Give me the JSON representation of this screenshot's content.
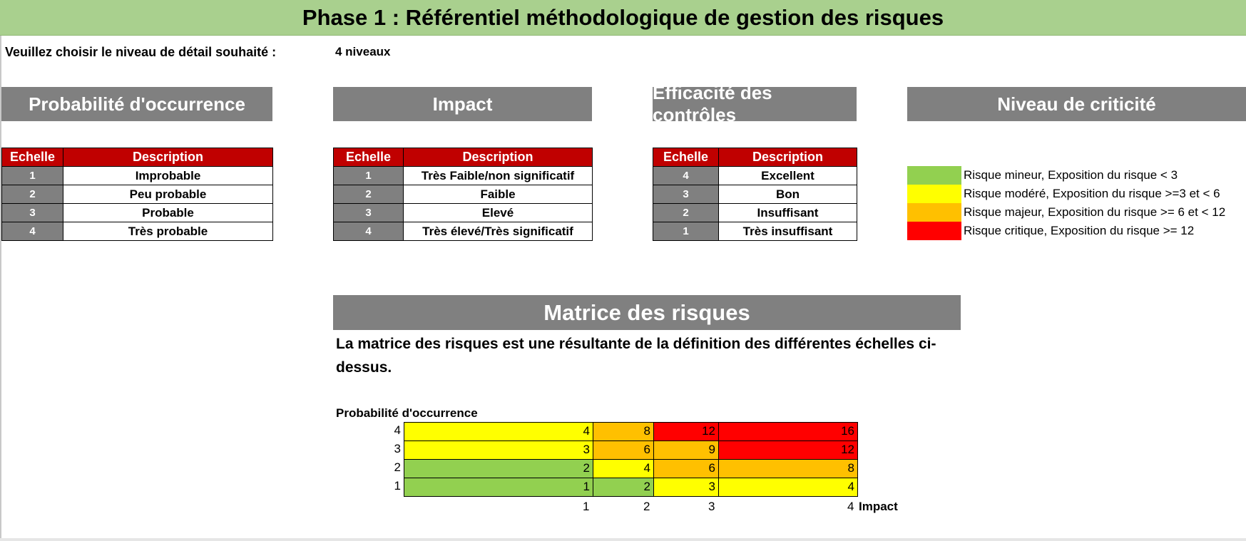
{
  "title": "Phase 1 : Référentiel méthodologique de gestion des risques",
  "prompt": {
    "label": "Veuillez choisir le niveau de détail souhaité :",
    "value": "4 niveaux"
  },
  "sections": {
    "probability": {
      "header": "Probabilité d'occurrence",
      "col_scale": "Echelle",
      "col_desc": "Description",
      "rows": [
        {
          "level": "1",
          "desc": "Improbable"
        },
        {
          "level": "2",
          "desc": "Peu probable"
        },
        {
          "level": "3",
          "desc": "Probable"
        },
        {
          "level": "4",
          "desc": "Très probable"
        }
      ]
    },
    "impact": {
      "header": "Impact",
      "col_scale": "Echelle",
      "col_desc": "Description",
      "rows": [
        {
          "level": "1",
          "desc": "Très Faible/non significatif"
        },
        {
          "level": "2",
          "desc": "Faible"
        },
        {
          "level": "3",
          "desc": "Elevé"
        },
        {
          "level": "4",
          "desc": "Très élevé/Très significatif"
        }
      ]
    },
    "controls": {
      "header": "Efficacité des contrôles",
      "col_scale": "Echelle",
      "col_desc": "Description",
      "rows": [
        {
          "level": "4",
          "desc": "Excellent"
        },
        {
          "level": "3",
          "desc": "Bon"
        },
        {
          "level": "2",
          "desc": "Insuffisant"
        },
        {
          "level": "1",
          "desc": "Très insuffisant"
        }
      ]
    },
    "criticality": {
      "header": "Niveau de criticité",
      "legend": [
        {
          "color": "#92d050",
          "text": "Risque mineur, Exposition du risque < 3"
        },
        {
          "color": "#ffff00",
          "text": "Risque modéré, Exposition du risque >=3 et < 6"
        },
        {
          "color": "#ffc000",
          "text": "Risque majeur, Exposition du risque >= 6 et < 12"
        },
        {
          "color": "#ff0000",
          "text": "Risque critique, Exposition du risque >= 12"
        }
      ]
    }
  },
  "matrix": {
    "header": "Matrice des risques",
    "note": "La matrice des risques est une résultante de la définition des différentes échelles ci-dessus.",
    "y_title": "Probabilité d'occurrence",
    "x_title": "Impact",
    "y_labels": [
      "4",
      "3",
      "2",
      "1"
    ],
    "x_labels": [
      "1",
      "2",
      "3",
      "4"
    ],
    "rows": [
      [
        {
          "v": "4",
          "c": "#ffff00"
        },
        {
          "v": "8",
          "c": "#ffc000"
        },
        {
          "v": "12",
          "c": "#ff0000"
        },
        {
          "v": "16",
          "c": "#ff0000"
        }
      ],
      [
        {
          "v": "3",
          "c": "#ffff00"
        },
        {
          "v": "6",
          "c": "#ffc000"
        },
        {
          "v": "9",
          "c": "#ffc000"
        },
        {
          "v": "12",
          "c": "#ff0000"
        }
      ],
      [
        {
          "v": "2",
          "c": "#92d050"
        },
        {
          "v": "4",
          "c": "#ffff00"
        },
        {
          "v": "6",
          "c": "#ffc000"
        },
        {
          "v": "8",
          "c": "#ffc000"
        }
      ],
      [
        {
          "v": "1",
          "c": "#92d050"
        },
        {
          "v": "2",
          "c": "#92d050"
        },
        {
          "v": "3",
          "c": "#ffff00"
        },
        {
          "v": "4",
          "c": "#ffff00"
        }
      ]
    ]
  }
}
